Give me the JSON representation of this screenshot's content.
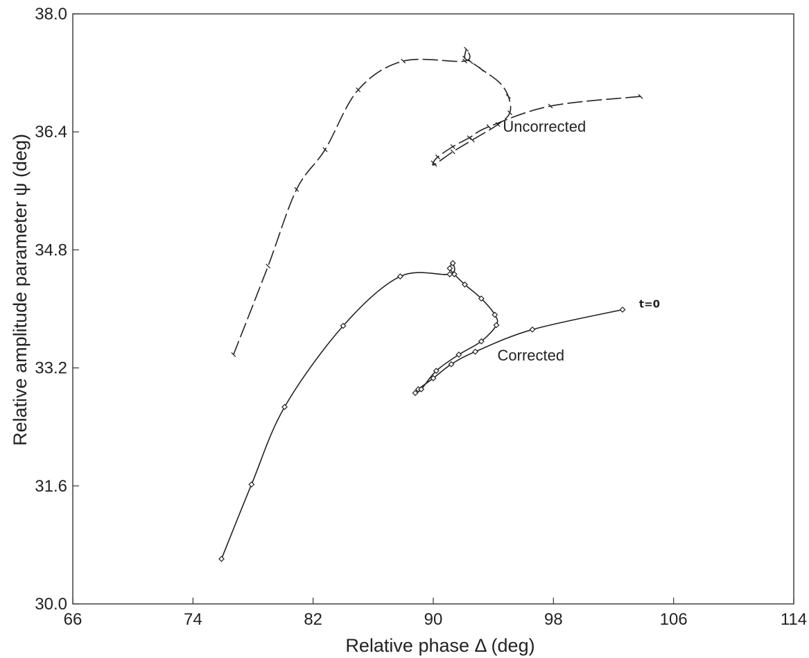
{
  "chart_data": {
    "type": "line",
    "title": "",
    "xlabel": "Relative  phase Δ (deg)",
    "ylabel": "Relative amplitude parameter ψ (deg)",
    "xlim": [
      66,
      114
    ],
    "ylim": [
      30.0,
      38.0
    ],
    "xticks": [
      "66",
      "74",
      "82",
      "90",
      "98",
      "106",
      "114"
    ],
    "yticks": [
      "30.0",
      "31.6",
      "33.2",
      "34.8",
      "36.4",
      "38.0"
    ],
    "grid": false,
    "legend": "none",
    "annotations": [
      {
        "text": "Uncorrected",
        "x": 97.4,
        "y": 36.4
      },
      {
        "text": "Corrected",
        "x": 96.5,
        "y": 33.3
      },
      {
        "text": "t=0",
        "x": 104.4,
        "y": 34.02
      }
    ],
    "series": [
      {
        "style": "dashed",
        "marker": "tick",
        "color": "#222222",
        "x": [
          103.8,
          97.8,
          93.7,
          92.4,
          91.3,
          90.3,
          90.0,
          90.1,
          91.3,
          92.6,
          94.3,
          95.1,
          95.0,
          94.4,
          93.2,
          92.5,
          92.1,
          92.2,
          92.1,
          88.0,
          85.0,
          82.8,
          80.9,
          79.0,
          76.7
        ],
        "y": [
          36.88,
          36.75,
          36.47,
          36.32,
          36.2,
          36.06,
          35.98,
          35.96,
          36.13,
          36.29,
          36.5,
          36.66,
          36.88,
          37.07,
          37.25,
          37.35,
          37.4,
          37.52,
          37.36,
          37.36,
          36.97,
          36.16,
          35.62,
          34.58,
          33.38
        ]
      },
      {
        "style": "solid",
        "marker": "diamond",
        "color": "#222222",
        "x": [
          102.6,
          96.6,
          92.8,
          91.2,
          90.0,
          89.0,
          88.8,
          89.2,
          90.2,
          91.7,
          93.2,
          94.2,
          94.1,
          93.2,
          92.1,
          91.4,
          91.1,
          91.3,
          91.1,
          87.8,
          84.0,
          80.1,
          77.9,
          75.9
        ],
        "y": [
          33.99,
          33.72,
          33.42,
          33.25,
          33.06,
          32.91,
          32.86,
          32.91,
          33.16,
          33.38,
          33.56,
          33.78,
          33.92,
          34.14,
          34.33,
          34.47,
          34.55,
          34.62,
          34.47,
          34.44,
          33.77,
          32.67,
          31.62,
          30.61
        ]
      }
    ]
  }
}
